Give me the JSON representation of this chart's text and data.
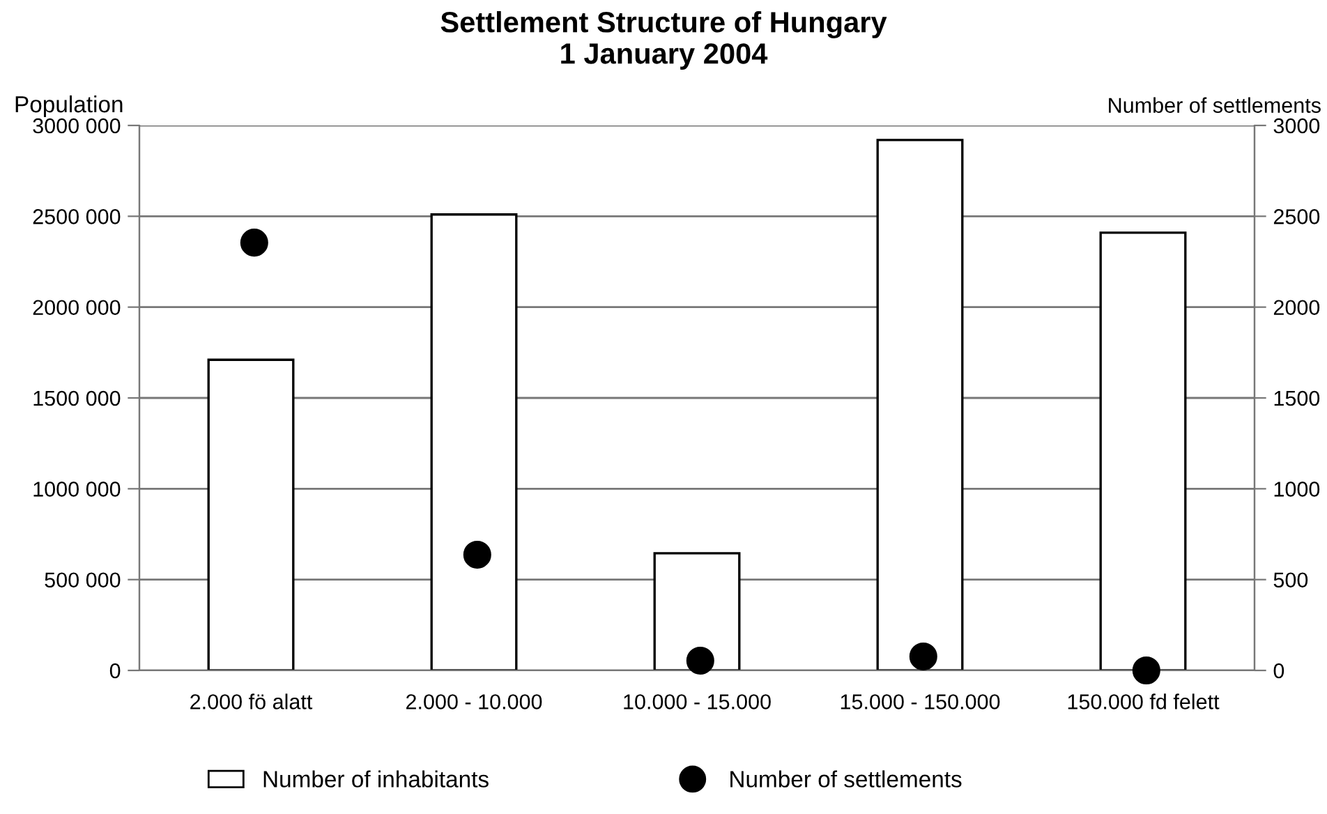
{
  "chart_data": {
    "type": "bar",
    "title": "Settlement Structure of Hungary\n1 January 2004",
    "ylabel": "Population",
    "y2label": "Number of settlements",
    "categories": [
      "2.000 fö alatt",
      "2.000 - 10.000",
      "10.000 - 15.000",
      "15.000 - 150.000",
      "150.000 fd felett"
    ],
    "series": [
      {
        "name": "Number of inhabitants",
        "color": "#ffffff",
        "values": [
          1710000,
          2510000,
          645000,
          2920000,
          2410000
        ]
      },
      {
        "name": "Number of settlements",
        "type": "scatter",
        "axis": "y2",
        "color": "#000000",
        "marker": "circle",
        "x": [
          "2.000 fö alatt",
          "2.000 - 10.000",
          "10.000 - 15.000",
          "15.000 - 150.000",
          "150.000 fd felett"
        ],
        "values": [
          2355,
          637,
          54,
          77,
          0
        ]
      }
    ],
    "ylim": [
      0,
      3000000
    ],
    "yticks": [
      {
        "value": 0,
        "label": "0"
      },
      {
        "value": 500000,
        "label": "500 000"
      },
      {
        "value": 1000000,
        "label": "1000 000"
      },
      {
        "value": 1500000,
        "label": "1500 000"
      },
      {
        "value": 2000000,
        "label": "2000 000"
      },
      {
        "value": 2500000,
        "label": "2500 000"
      },
      {
        "value": 3000000,
        "label": "3000 000"
      }
    ],
    "y2lim": [
      0,
      3000
    ],
    "y2ticks": [
      0,
      500,
      1000,
      1500,
      2000,
      2500,
      3000
    ],
    "grid": "y",
    "legend": "bottom"
  }
}
